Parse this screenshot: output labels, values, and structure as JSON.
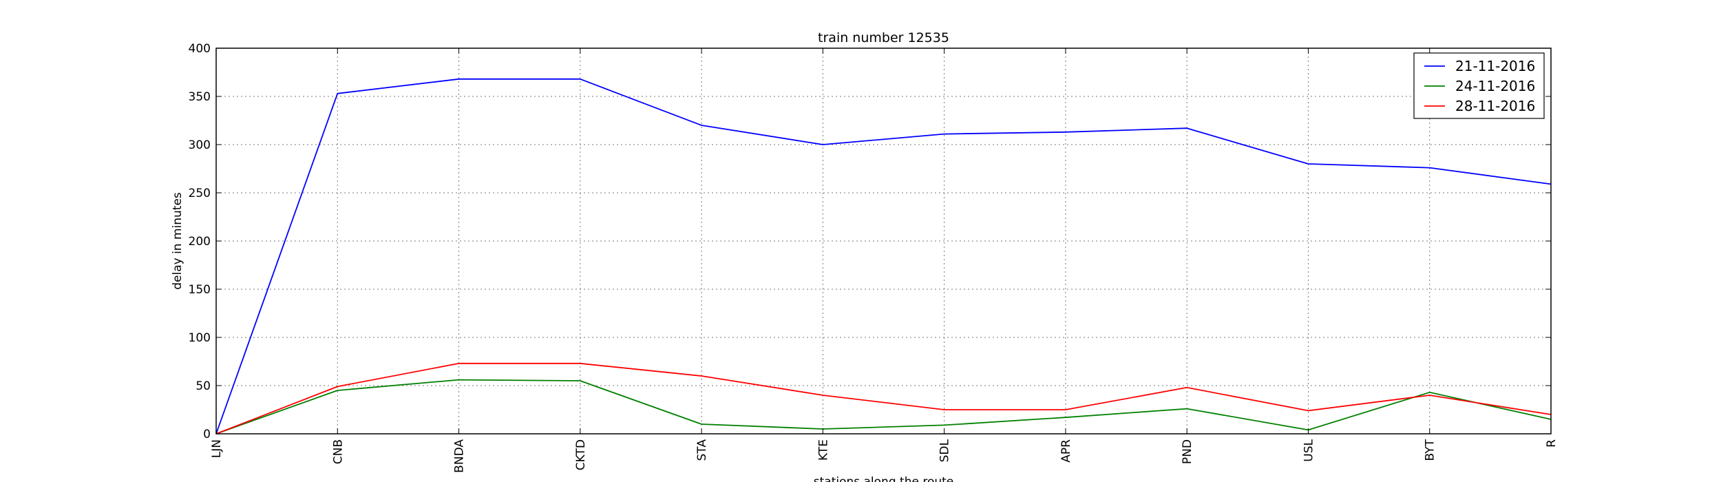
{
  "chart_data": {
    "type": "line",
    "title": "train number 12535",
    "xlabel": "stations along the route",
    "ylabel": "delay in minutes",
    "categories": [
      "LJN",
      "CNB",
      "BNDA",
      "CKTD",
      "STA",
      "KTE",
      "SDL",
      "APR",
      "PND",
      "USL",
      "BYT",
      "R"
    ],
    "ylim": [
      0,
      400
    ],
    "yticks": [
      0,
      50,
      100,
      150,
      200,
      250,
      300,
      350,
      400
    ],
    "grid": true,
    "legend_position": "top-right",
    "series": [
      {
        "name": "21-11-2016",
        "color": "#0000ff",
        "values": [
          0,
          353,
          368,
          368,
          320,
          300,
          311,
          313,
          317,
          280,
          276,
          259
        ]
      },
      {
        "name": "24-11-2016",
        "color": "#008000",
        "values": [
          0,
          45,
          56,
          55,
          10,
          5,
          9,
          17,
          26,
          4,
          43,
          15
        ]
      },
      {
        "name": "28-11-2016",
        "color": "#ff0000",
        "values": [
          0,
          49,
          73,
          73,
          60,
          40,
          25,
          25,
          48,
          24,
          40,
          20
        ]
      }
    ]
  }
}
